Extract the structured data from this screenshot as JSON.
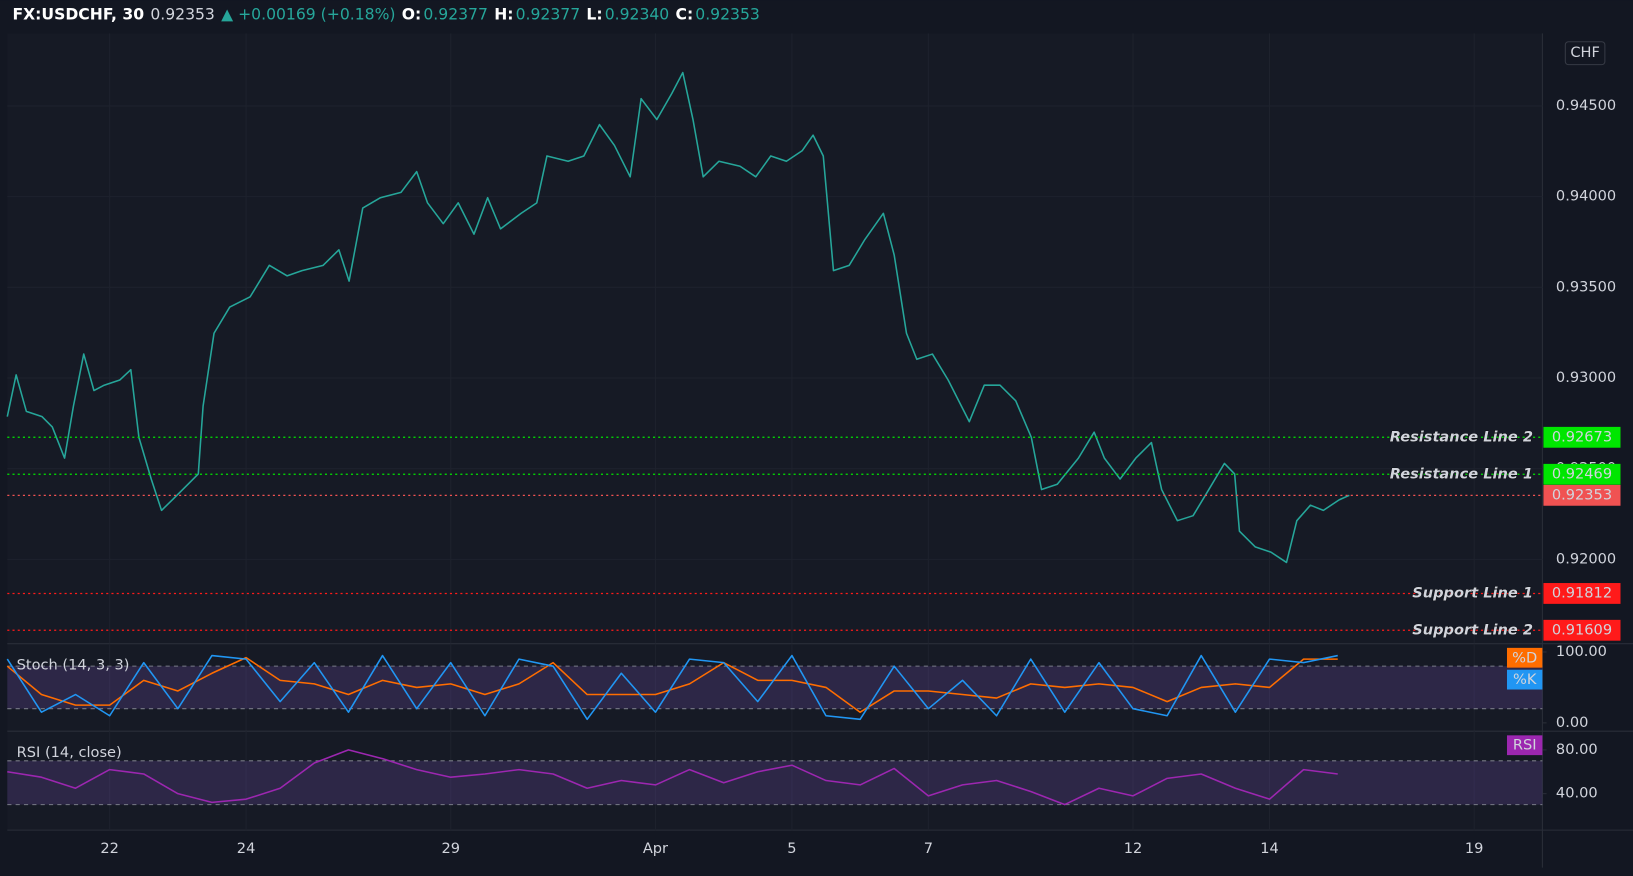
{
  "header": {
    "symbol": "FX:USDCHF, 30",
    "last": "0.92353",
    "change": "▲ +0.00169 (+0.18%)",
    "ohlc": [
      {
        "label": "O:",
        "value": "0.92377"
      },
      {
        "label": "H:",
        "value": "0.92377"
      },
      {
        "label": "L:",
        "value": "0.92340"
      },
      {
        "label": "C:",
        "value": "0.92353"
      }
    ],
    "currency": "CHF"
  },
  "chart_data": [
    {
      "type": "line",
      "x": [
        -1.5,
        -1.37,
        -1.22,
        -0.99,
        -0.84,
        -0.66,
        -0.53,
        -0.38,
        -0.23,
        -0.08,
        0.15,
        0.31,
        0.43,
        0.61,
        0.76,
        0.92,
        1.15,
        1.3,
        1.37,
        1.53,
        1.76,
        2.06,
        2.34,
        2.6,
        2.82,
        3.13,
        3.36,
        3.51,
        3.71,
        3.97,
        4.27,
        4.5,
        4.66,
        4.89,
        5.11,
        5.34,
        5.54,
        5.73,
        6.03,
        6.26,
        6.41,
        6.72,
        6.95,
        7.18,
        7.4,
        7.63,
        7.79,
        8.02,
        8.24,
        8.4,
        8.55,
        8.7,
        8.93,
        9.24,
        9.47,
        9.69,
        9.92,
        10.15,
        10.31,
        10.46,
        10.61,
        10.84,
        11.07,
        11.34,
        11.5,
        11.68,
        11.83,
        12.06,
        12.29,
        12.6,
        12.82,
        13.05,
        13.28,
        13.51,
        13.66,
        13.89,
        14.2,
        14.43,
        14.58,
        14.81,
        15.04,
        15.27,
        15.42,
        15.65,
        15.88,
        16.11,
        16.34,
        16.49,
        16.56,
        16.79,
        17.02,
        17.25,
        17.4,
        17.6,
        17.79,
        18.02,
        18.17
      ],
      "series": [
        {
          "name": "FX:USDCHF",
          "color": "#26a69a",
          "values": [
            0.92787,
            0.93017,
            0.92816,
            0.92787,
            0.9273,
            0.92558,
            0.92845,
            0.93132,
            0.92931,
            0.9296,
            0.92989,
            0.93046,
            0.92672,
            0.92443,
            0.9227,
            0.92328,
            0.92414,
            0.92471,
            0.92845,
            0.93247,
            0.93391,
            0.93448,
            0.93621,
            0.93563,
            0.93592,
            0.93621,
            0.93707,
            0.93534,
            0.93937,
            0.93994,
            0.94023,
            0.94138,
            0.93966,
            0.93851,
            0.93966,
            0.93793,
            0.93994,
            0.93822,
            0.93908,
            0.93966,
            0.94224,
            0.94195,
            0.94224,
            0.94397,
            0.94282,
            0.94109,
            0.9454,
            0.94425,
            0.94569,
            0.94684,
            0.94425,
            0.94109,
            0.94195,
            0.94167,
            0.94109,
            0.94224,
            0.94195,
            0.94253,
            0.94339,
            0.94224,
            0.93592,
            0.93621,
            0.93764,
            0.93908,
            0.93678,
            0.93247,
            0.93103,
            0.93132,
            0.92989,
            0.92759,
            0.9296,
            0.9296,
            0.92874,
            0.92672,
            0.92385,
            0.92414,
            0.92558,
            0.92701,
            0.92558,
            0.92443,
            0.92558,
            0.92644,
            0.92385,
            0.92213,
            0.92241,
            0.92385,
            0.92529,
            0.92471,
            0.92155,
            0.92069,
            0.9204,
            0.91983,
            0.92213,
            0.92299,
            0.9227,
            0.92328,
            0.92353
          ]
        }
      ],
      "xlim": [
        -1.5,
        21
      ],
      "ylim": [
        0.91535,
        0.949
      ],
      "yticks": [
        {
          "value": 0.92,
          "label": "0.92000"
        },
        {
          "value": 0.925,
          "label": "0.92500"
        },
        {
          "value": 0.93,
          "label": "0.93000"
        },
        {
          "value": 0.935,
          "label": "0.93500"
        },
        {
          "value": 0.94,
          "label": "0.94000"
        },
        {
          "value": 0.945,
          "label": "0.94500"
        }
      ],
      "grid": true,
      "levels": [
        {
          "name": "Resistance Line 2",
          "value": 0.92673,
          "color": "#00e600"
        },
        {
          "name": "Resistance Line 1",
          "value": 0.92469,
          "color": "#00e600"
        },
        {
          "value": 0.92353,
          "color": "#f05252"
        },
        {
          "name": "Support Line 1",
          "value": 0.91812,
          "color": "#ff1a1a"
        },
        {
          "name": "Support Line 2",
          "value": 0.91609,
          "color": "#ff1a1a"
        }
      ]
    },
    {
      "type": "line",
      "title": "Stoch (14, 3, 3)",
      "x": [
        -1.5,
        -1,
        -0.5,
        0,
        0.5,
        1,
        1.5,
        2,
        2.5,
        3,
        3.5,
        4,
        4.5,
        5,
        5.5,
        6,
        6.5,
        7,
        7.5,
        8,
        8.5,
        9,
        9.5,
        10,
        10.5,
        11,
        11.5,
        12,
        12.5,
        13,
        13.5,
        14,
        14.5,
        15,
        15.5,
        16,
        16.5,
        17,
        17.5,
        18
      ],
      "series": [
        {
          "name": "%D",
          "color": "#ff6d00",
          "values": [
            80,
            40,
            25,
            25,
            60,
            45,
            70,
            92,
            60,
            55,
            40,
            60,
            50,
            55,
            40,
            55,
            85,
            40,
            40,
            40,
            55,
            85,
            60,
            60,
            50,
            15,
            45,
            45,
            40,
            35,
            55,
            50,
            55,
            50,
            30,
            50,
            55,
            50,
            90,
            90
          ]
        },
        {
          "name": "%K",
          "color": "#2196f3",
          "values": [
            90,
            15,
            40,
            10,
            85,
            20,
            95,
            90,
            30,
            85,
            15,
            95,
            20,
            85,
            10,
            90,
            80,
            5,
            70,
            15,
            90,
            85,
            30,
            95,
            10,
            5,
            80,
            20,
            60,
            10,
            90,
            15,
            85,
            20,
            10,
            95,
            15,
            90,
            85,
            95
          ]
        }
      ],
      "xlim": [
        -1.5,
        21
      ],
      "ylim": [
        -11.7,
        111.7
      ],
      "yticks": [
        {
          "value": 0,
          "label": "0.00"
        },
        {
          "value": 100,
          "label": "100.00"
        }
      ],
      "bands": [
        20,
        80
      ],
      "band_color": "#7e57c2"
    },
    {
      "type": "line",
      "title": "RSI (14, close)",
      "x": [
        -1.5,
        -1,
        -0.5,
        0,
        0.5,
        1,
        1.5,
        2,
        2.5,
        3,
        3.5,
        4,
        4.5,
        5,
        5.5,
        6,
        6.5,
        7,
        7.5,
        8,
        8.5,
        9,
        9.5,
        10,
        10.5,
        11,
        11.5,
        12,
        12.5,
        13,
        13.5,
        14,
        14.5,
        15,
        15.5,
        16,
        16.5,
        17,
        17.5,
        18
      ],
      "series": [
        {
          "name": "RSI",
          "color": "#9c27b0",
          "values": [
            60,
            55,
            45,
            62,
            58,
            40,
            32,
            35,
            45,
            68,
            80,
            72,
            62,
            55,
            58,
            62,
            58,
            45,
            52,
            48,
            62,
            50,
            60,
            66,
            52,
            48,
            63,
            38,
            48,
            52,
            42,
            30,
            45,
            38,
            54,
            58,
            45,
            35,
            62,
            58
          ]
        }
      ],
      "xlim": [
        -1.5,
        21
      ],
      "ylim": [
        6.7,
        97.1
      ],
      "yticks": [
        {
          "value": 40,
          "label": "40.00"
        },
        {
          "value": 80,
          "label": "80.00"
        }
      ],
      "bands": [
        30,
        70
      ],
      "band_color": "#7e57c2",
      "xticks": [
        {
          "value": 0,
          "label": "22"
        },
        {
          "value": 2,
          "label": "24"
        },
        {
          "value": 5,
          "label": "29"
        },
        {
          "value": 8,
          "label": "Apr"
        },
        {
          "value": 10,
          "label": "5"
        },
        {
          "value": 12,
          "label": "7"
        },
        {
          "value": 15,
          "label": "12"
        },
        {
          "value": 17,
          "label": "14"
        },
        {
          "value": 20,
          "label": "19"
        }
      ]
    }
  ]
}
